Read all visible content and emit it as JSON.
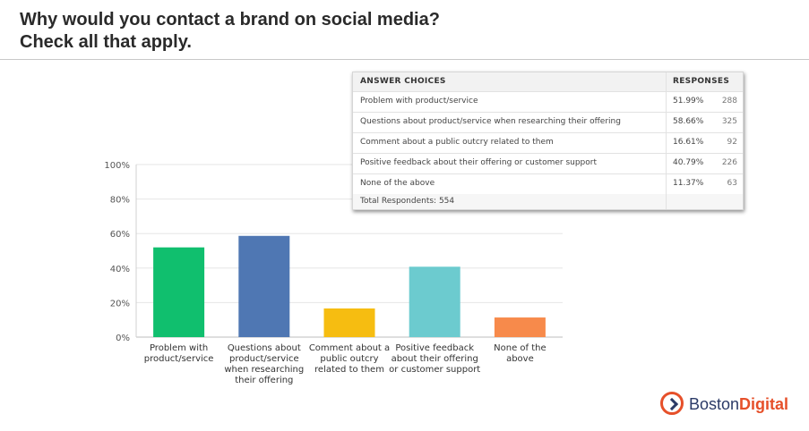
{
  "slide": {
    "title_line1": "Why would you contact a brand on social media?",
    "title_line2": "Check all that apply."
  },
  "chart_data": {
    "type": "bar",
    "categories": [
      [
        "Problem with",
        "product/service"
      ],
      [
        "Questions about",
        "product/service",
        "when researching",
        "their offering"
      ],
      [
        "Comment about a",
        "public outcry",
        "related to them"
      ],
      [
        "Positive feedback",
        "about their offering",
        "or customer support"
      ],
      [
        "None of the",
        "above"
      ]
    ],
    "values": [
      51.99,
      58.66,
      16.61,
      40.79,
      11.37
    ],
    "colors": [
      "#10bf6e",
      "#4f77b3",
      "#f6bd11",
      "#6ccbcf",
      "#f78a4b"
    ],
    "ylim": [
      0,
      100
    ],
    "yticks": [
      "0%",
      "20%",
      "40%",
      "60%",
      "80%",
      "100%"
    ],
    "title": "",
    "xlabel": "",
    "ylabel": ""
  },
  "table": {
    "header_choice": "ANSWER CHOICES",
    "header_responses": "RESPONSES",
    "rows": [
      {
        "label": "Problem with product/service",
        "pct": "51.99%",
        "count": "288"
      },
      {
        "label": "Questions about product/service when researching their offering",
        "pct": "58.66%",
        "count": "325"
      },
      {
        "label": "Comment about a public outcry related to them",
        "pct": "16.61%",
        "count": "92"
      },
      {
        "label": "Positive feedback about their offering or customer support",
        "pct": "40.79%",
        "count": "226"
      },
      {
        "label": "None of the above",
        "pct": "11.37%",
        "count": "63"
      }
    ],
    "total": "Total Respondents: 554"
  },
  "logo": {
    "part1": "Boston",
    "part2": "Digital"
  }
}
